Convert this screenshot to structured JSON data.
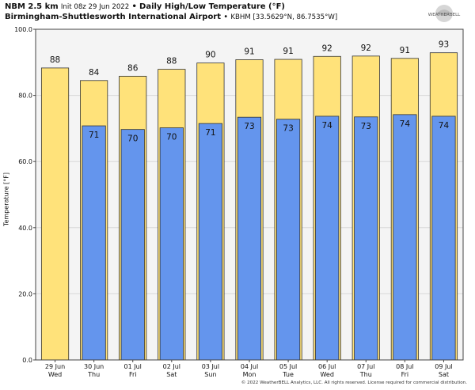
{
  "header": {
    "model": "NBM 2.5 km",
    "init": "Init 08z 29 Jun 2022",
    "sep1": "•",
    "product": "Daily High/Low Temperature (°F)",
    "station_name": "Birmingham-Shuttlesworth International Airport",
    "sep2": "•",
    "station_id": "KBHM [33.5629°N, 86.7535°W]"
  },
  "logo": {
    "text": "WEATHERBELL"
  },
  "footer": "© 2022 WeatherBELL Analytics, LLC. All rights reserved. License required for commercial distribution.",
  "colors": {
    "high": "#ffe27a",
    "low": "#6495ed",
    "background": "#f4f4f4",
    "grid": "#d8d8d8"
  },
  "chart_data": {
    "type": "bar",
    "ylabel": "Temperature [°F]",
    "ylim": [
      0,
      100
    ],
    "yticks": [
      "0.0",
      "20.0",
      "40.0",
      "60.0",
      "80.0",
      "100.0"
    ],
    "grid": true,
    "categories": [
      {
        "date": "29 Jun",
        "day": "Wed"
      },
      {
        "date": "30 Jun",
        "day": "Thu"
      },
      {
        "date": "01 Jul",
        "day": "Fri"
      },
      {
        "date": "02 Jul",
        "day": "Sat"
      },
      {
        "date": "03 Jul",
        "day": "Sun"
      },
      {
        "date": "04 Jul",
        "day": "Mon"
      },
      {
        "date": "05 Jul",
        "day": "Tue"
      },
      {
        "date": "06 Jul",
        "day": "Wed"
      },
      {
        "date": "07 Jul",
        "day": "Thu"
      },
      {
        "date": "08 Jul",
        "day": "Fri"
      },
      {
        "date": "09 Jul",
        "day": "Sat"
      }
    ],
    "high": {
      "values": [
        88.3,
        84.5,
        85.8,
        87.9,
        89.8,
        90.8,
        90.9,
        91.8,
        91.9,
        91.2,
        92.9
      ],
      "labels": [
        "88",
        "84",
        "86",
        "88",
        "90",
        "91",
        "91",
        "92",
        "92",
        "91",
        "93"
      ]
    },
    "low": {
      "values": [
        null,
        70.8,
        69.7,
        70.2,
        71.5,
        73.4,
        72.8,
        73.7,
        73.5,
        74.2,
        73.7
      ],
      "labels": [
        "",
        "71",
        "70",
        "70",
        "71",
        "73",
        "73",
        "74",
        "73",
        "74",
        "74"
      ]
    }
  }
}
